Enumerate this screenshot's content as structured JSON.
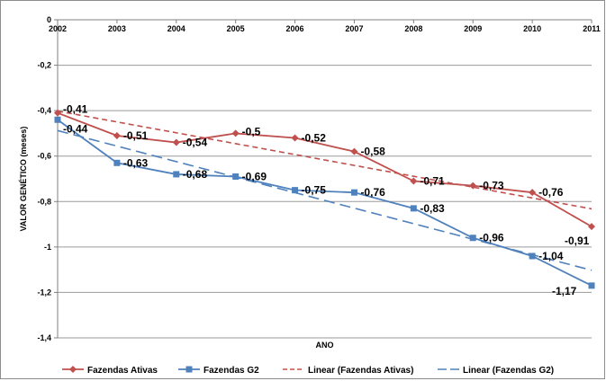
{
  "chart_data": {
    "type": "line",
    "x": [
      2002,
      2003,
      2004,
      2005,
      2006,
      2007,
      2008,
      2009,
      2010,
      2011
    ],
    "x_tick_labels": [
      "2002",
      "2003",
      "2004",
      "2005",
      "2006",
      "2007",
      "2008",
      "2009",
      "2010",
      "2011"
    ],
    "xlabel": "ANO",
    "ylabel": "VALOR GENÉTICO (meses)",
    "ylim": [
      -1.4,
      0
    ],
    "y_ticks": [
      0,
      -0.2,
      -0.4,
      -0.6,
      -0.8,
      -1,
      -1.2,
      -1.4
    ],
    "y_tick_labels": [
      "0",
      "-0,2",
      "-0,4",
      "-0,6",
      "-0,8",
      "-1",
      "-1,2",
      "-1,4"
    ],
    "grid": true,
    "legend_position": "bottom",
    "series": [
      {
        "name": "Fazendas Ativas",
        "color": "#c0504d",
        "marker": "diamond",
        "values": [
          -0.41,
          -0.51,
          -0.54,
          -0.5,
          -0.52,
          -0.58,
          -0.71,
          -0.73,
          -0.76,
          -0.91
        ],
        "labels": [
          "-0,41",
          "-0,51",
          "-0,54",
          "-0,5",
          "-0,52",
          "-0,58",
          "-0,71",
          "-0,73",
          "-0,76",
          "-0,91"
        ]
      },
      {
        "name": "Fazendas G2",
        "color": "#4f81bd",
        "marker": "square",
        "values": [
          -0.44,
          -0.63,
          -0.68,
          -0.69,
          -0.75,
          -0.76,
          -0.83,
          -0.96,
          -1.04,
          -1.17
        ],
        "labels": [
          "-0,44",
          "-0,63",
          "-0,68",
          "-0,69",
          "-0,75",
          "-0,76",
          "-0,83",
          "-0,96",
          "-1,04",
          "-1,17"
        ]
      }
    ],
    "trendlines": [
      {
        "name": "Linear (Fazendas Ativas)",
        "series_index": 0,
        "type": "linear",
        "color": "#c0504d",
        "dash": "short"
      },
      {
        "name": "Linear (Fazendas G2)",
        "series_index": 1,
        "type": "linear",
        "color": "#4f81bd",
        "dash": "long"
      }
    ]
  }
}
